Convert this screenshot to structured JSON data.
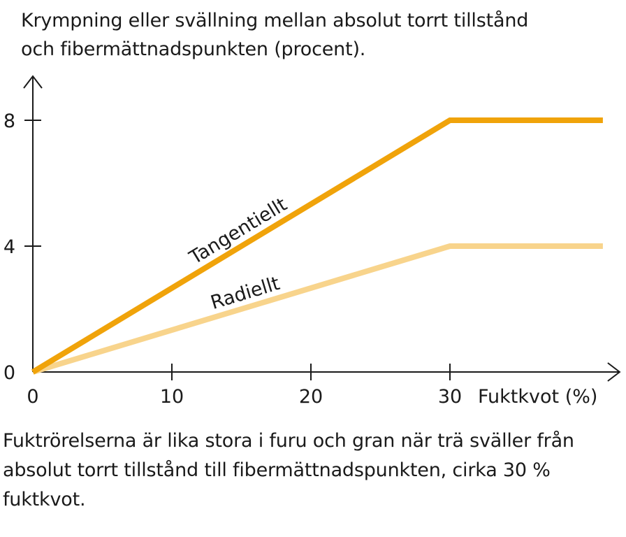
{
  "chart_data": {
    "type": "line",
    "title": [
      "Krympning eller svällning mellan absolut torrt tillstånd",
      "och fibermättnadspunkten (procent)."
    ],
    "xlabel": "Fuktkvot (%)",
    "ylabel": "",
    "xlim": [
      0,
      41
    ],
    "ylim": [
      0,
      9.4
    ],
    "x_ticks": [
      0,
      10,
      20,
      30
    ],
    "y_ticks": [
      0,
      4,
      8
    ],
    "grid": false,
    "series": [
      {
        "name": "Tangentiellt",
        "x": [
          0,
          30,
          41
        ],
        "y": [
          0,
          8,
          8
        ],
        "color": "#f0a30a"
      },
      {
        "name": "Radiellt",
        "x": [
          0,
          30,
          41
        ],
        "y": [
          0,
          4,
          4
        ],
        "color": "#f8d48c"
      }
    ]
  },
  "caption": [
    "Fuktrörelserna är lika stora i furu och gran när trä sväller från",
    "absolut torrt tillstånd till fibermättnadspunkten, cirka 30 %",
    "fuktkvot."
  ]
}
